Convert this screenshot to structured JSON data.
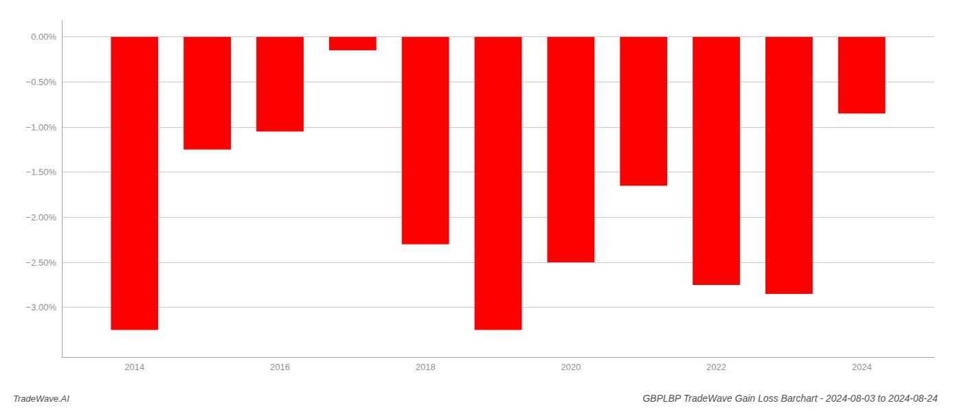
{
  "chart_data": {
    "type": "bar",
    "title": "GBPLBP TradeWave Gain Loss Barchart - 2024-08-03 to 2024-08-24",
    "annotations": [
      "TradeWave.AI"
    ],
    "x": [
      2014,
      2015,
      2016,
      2017,
      2018,
      2019,
      2020,
      2021,
      2022,
      2023,
      2024
    ],
    "values": [
      -3.25,
      -1.25,
      -1.05,
      -0.15,
      -2.3,
      -3.25,
      -2.5,
      -1.65,
      -2.75,
      -2.85,
      -0.85
    ],
    "color": "#ff0000",
    "xlim": [
      2013,
      2025
    ],
    "xticks": [
      2014,
      2016,
      2018,
      2020,
      2022,
      2024
    ],
    "ylim": [
      -3.55,
      0.18
    ],
    "yticks": [
      {
        "value": 0.0,
        "label": "0.00%"
      },
      {
        "value": -0.5,
        "label": "−0.50%"
      },
      {
        "value": -1.0,
        "label": "−1.00%"
      },
      {
        "value": -1.5,
        "label": "−1.50%"
      },
      {
        "value": -2.0,
        "label": "−2.00%"
      },
      {
        "value": -2.5,
        "label": "−2.50%"
      },
      {
        "value": -3.0,
        "label": "−3.00%"
      }
    ],
    "grid": true
  }
}
